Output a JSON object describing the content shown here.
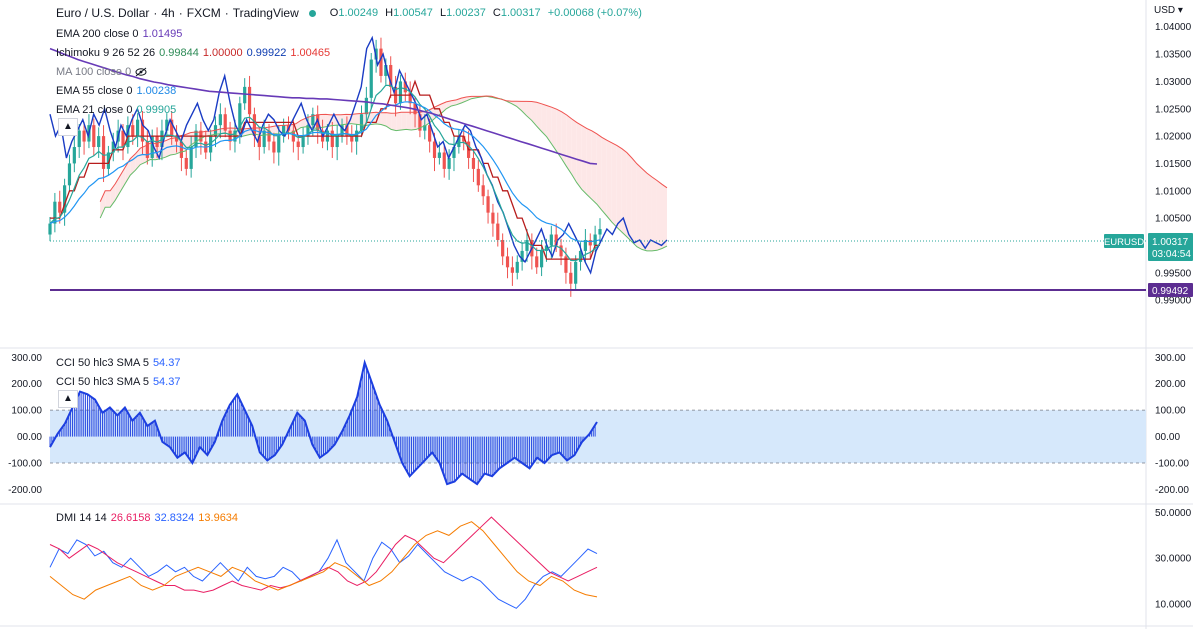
{
  "header": {
    "symbol_title": "Euro / U.S. Dollar",
    "interval": "4h",
    "exchange": "FXCM",
    "brand": "TradingView",
    "ohlc": [
      {
        "k": "O",
        "v": "1.00249"
      },
      {
        "k": "H",
        "v": "1.00547"
      },
      {
        "k": "L",
        "v": "1.00237"
      },
      {
        "k": "C",
        "v": "1.00317"
      },
      {
        "k": "",
        "v": "+0.00068 (+0.07%)"
      }
    ],
    "currency": "USD"
  },
  "indicators": {
    "ema200": {
      "label": "EMA 200 close 0",
      "value": "1.01495",
      "color": "#673ab7"
    },
    "ichimoku": {
      "label": "Ichimoku 9 26 52 26",
      "values": [
        {
          "v": "0.99844",
          "color": "#2e8b57"
        },
        {
          "v": "1.00000",
          "color": "#c62828"
        },
        {
          "v": "0.99922",
          "color": "#0d3cb0"
        },
        {
          "v": "1.00465",
          "color": "#e53935"
        }
      ]
    },
    "ma100": {
      "label": "MA 100 close 0"
    },
    "ema55": {
      "label": "EMA 55 close 0",
      "value": "1.00238",
      "color": "#1e88e5"
    },
    "ema21": {
      "label": "EMA 21 close 0",
      "value": "0.99905",
      "color": "#26a69a"
    }
  },
  "cci_legend": [
    {
      "label": "CCI 50 hlc3 SMA 5",
      "value": "54.37"
    },
    {
      "label": "CCI 50 hlc3 SMA 5",
      "value": "54.37"
    }
  ],
  "dmi_legend": {
    "label": "DMI 14 14",
    "values": [
      {
        "v": "26.6158",
        "color": "#e91e63"
      },
      {
        "v": "32.8324",
        "color": "#2962ff"
      },
      {
        "v": "13.9634",
        "color": "#f57c00"
      }
    ]
  },
  "axis_badges": {
    "symbol_tag": "EURUSD",
    "last_price": "1.00317",
    "countdown": "03:04:54",
    "support": "0.99492"
  },
  "colors": {
    "up": "#26a69a",
    "down": "#ef5350",
    "ema200": "#673ab7",
    "ema55": "#2196f3",
    "ema21": "#26a69a",
    "kijun": "#b71c1c",
    "chikou": "#1a3cc4",
    "spanA": "#66bb6a",
    "spanB": "#ef5350",
    "cci": "#1d3fe0",
    "cci_band": "#d6e8fb",
    "support": "#5c2d91",
    "dmi_plus": "#2962ff",
    "dmi_minus": "#e91e63",
    "adx": "#f57c00"
  },
  "chart_data": [
    {
      "type": "line",
      "name": "price",
      "title": "Euro / U.S. Dollar",
      "ylim": [
        0.986,
        1.0405
      ],
      "yticks": [
        "1.04000",
        "1.03500",
        "1.03000",
        "1.02500",
        "1.02000",
        "1.01500",
        "1.01000",
        "1.00500",
        "1.00000",
        "0.99500",
        "0.99000"
      ],
      "ytick_values": [
        1.04,
        1.035,
        1.03,
        1.025,
        1.02,
        1.015,
        1.01,
        1.005,
        1.0,
        0.995,
        0.99
      ],
      "close": [
        1.004,
        1.008,
        1.006,
        1.011,
        1.015,
        1.018,
        1.021,
        1.019,
        1.022,
        1.018,
        1.02,
        1.014,
        1.017,
        1.019,
        1.021,
        1.018,
        1.022,
        1.02,
        1.023,
        1.019,
        1.016,
        1.02,
        1.018,
        1.021,
        1.023,
        1.02,
        1.019,
        1.016,
        1.014,
        1.018,
        1.021,
        1.019,
        1.017,
        1.02,
        1.022,
        1.024,
        1.021,
        1.019,
        1.021,
        1.026,
        1.029,
        1.024,
        1.02,
        1.018,
        1.021,
        1.019,
        1.017,
        1.02,
        1.022,
        1.021,
        1.019,
        1.018,
        1.02,
        1.022,
        1.024,
        1.021,
        1.019,
        1.021,
        1.018,
        1.02,
        1.022,
        1.02,
        1.019,
        1.021,
        1.024,
        1.027,
        1.034,
        1.036,
        1.031,
        1.033,
        1.029,
        1.026,
        1.03,
        1.028,
        1.026,
        1.024,
        1.021,
        1.022,
        1.019,
        1.016,
        1.017,
        1.014,
        1.016,
        1.018,
        1.02,
        1.019,
        1.016,
        1.014,
        1.011,
        1.009,
        1.006,
        1.004,
        1.001,
        0.998,
        0.996,
        0.995,
        0.997,
        0.999,
        1.001,
        0.998,
        0.996,
        0.999,
        1.0,
        1.002,
        1.0,
        0.998,
        0.995,
        0.993,
        0.997,
        0.999,
        1.001,
        1.0,
        1.002,
        1.003
      ],
      "ema200": [
        1.036,
        1.0355,
        1.035,
        1.0345,
        1.034,
        1.0336,
        1.0332,
        1.0328,
        1.0324,
        1.032,
        1.0316,
        1.0312,
        1.0309,
        1.0305,
        1.0302,
        1.0299,
        1.0297,
        1.0294,
        1.0292,
        1.029,
        1.0288,
        1.0286,
        1.0284,
        1.0282,
        1.0281,
        1.028,
        1.0279,
        1.0278,
        1.0277,
        1.0276,
        1.0275,
        1.0274,
        1.0273,
        1.0272,
        1.0271,
        1.027,
        1.027,
        1.0269,
        1.0269,
        1.0268,
        1.0268,
        1.0267,
        1.0266,
        1.0265,
        1.0264,
        1.0263,
        1.0262,
        1.026,
        1.0259,
        1.0257,
        1.0255,
        1.0253,
        1.0251,
        1.0248,
        1.0245,
        1.0242,
        1.0238,
        1.0234,
        1.023,
        1.0226,
        1.0222,
        1.0218,
        1.0214,
        1.021,
        1.0206,
        1.0202,
        1.0198,
        1.0194,
        1.019,
        1.0186,
        1.0182,
        1.0178,
        1.0174,
        1.017,
        1.0166,
        1.0162,
        1.0158,
        1.0154,
        1.015,
        1.0149
      ]
    },
    {
      "type": "area",
      "name": "CCI 50 hlc3 SMA 5",
      "ylim": [
        -240,
        320
      ],
      "yticks": [
        "300.00",
        "200.00",
        "100.00",
        "00.00",
        "-100.00",
        "-200.00"
      ],
      "ytick_values": [
        300,
        200,
        100,
        0,
        -100,
        -200
      ],
      "band": [
        -100,
        100
      ],
      "values": [
        -40,
        10,
        50,
        110,
        170,
        160,
        140,
        90,
        110,
        80,
        110,
        60,
        90,
        40,
        60,
        -20,
        -40,
        -80,
        -60,
        -100,
        -40,
        -70,
        -20,
        60,
        120,
        160,
        100,
        40,
        -60,
        -90,
        -70,
        -30,
        30,
        90,
        60,
        -30,
        -80,
        -60,
        -30,
        20,
        80,
        150,
        280,
        200,
        120,
        60,
        -20,
        -100,
        -150,
        -120,
        -90,
        -60,
        -100,
        -180,
        -170,
        -140,
        -160,
        -180,
        -140,
        -150,
        -120,
        -100,
        -80,
        -100,
        -120,
        -80,
        -100,
        -70,
        -60,
        -90,
        -70,
        -20,
        10,
        55
      ]
    },
    {
      "type": "line",
      "name": "DMI 14 14",
      "ylim": [
        2,
        52
      ],
      "yticks": [
        "50.0000",
        "30.0000",
        "10.0000"
      ],
      "ytick_values": [
        50,
        30,
        10
      ],
      "series": [
        {
          "name": "+DI",
          "values": [
            26,
            34,
            32,
            38,
            36,
            31,
            33,
            28,
            26,
            30,
            26,
            22,
            24,
            27,
            24,
            26,
            22,
            20,
            24,
            28,
            24,
            20,
            26,
            22,
            21,
            22,
            26,
            24,
            20,
            22,
            24,
            30,
            38,
            28,
            24,
            20,
            30,
            37,
            34,
            28,
            31,
            36,
            32,
            28,
            24,
            22,
            20,
            22,
            20,
            16,
            12,
            10,
            8,
            12,
            18,
            22,
            24,
            22,
            26,
            30,
            34,
            32
          ]
        },
        {
          "name": "-DI",
          "values": [
            36,
            34,
            30,
            33,
            36,
            34,
            31,
            28,
            26,
            24,
            22,
            20,
            18,
            18,
            16,
            16,
            15,
            16,
            18,
            20,
            18,
            17,
            16,
            18,
            17,
            18,
            20,
            22,
            24,
            26,
            24,
            20,
            18,
            20,
            24,
            30,
            36,
            40,
            38,
            34,
            30,
            28,
            32,
            36,
            40,
            44,
            48,
            44,
            40,
            36,
            32,
            28,
            24,
            22,
            20,
            22,
            24,
            26
          ]
        },
        {
          "name": "ADX",
          "values": [
            22,
            18,
            14,
            12,
            16,
            18,
            20,
            22,
            18,
            16,
            18,
            22,
            24,
            26,
            24,
            22,
            26,
            24,
            20,
            18,
            16,
            18,
            20,
            22,
            24,
            28,
            26,
            22,
            18,
            20,
            24,
            30,
            36,
            40,
            42,
            40,
            44,
            46,
            42,
            36,
            30,
            24,
            20,
            18,
            22,
            20,
            16,
            14,
            13
          ]
        }
      ]
    }
  ]
}
